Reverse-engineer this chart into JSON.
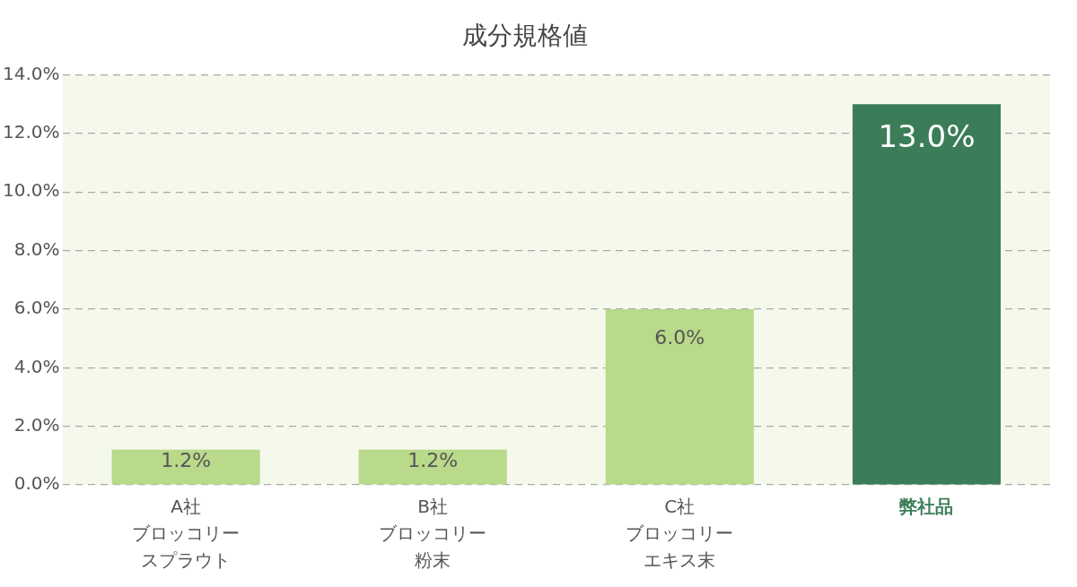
{
  "chart_data": {
    "type": "bar",
    "title": "成分規格値",
    "categories": [
      "A社ブロッコリースプラウト",
      "B社ブロッコリー粉末",
      "C社ブロッコリーエキス末",
      "弊社品"
    ],
    "values": [
      1.2,
      1.2,
      6.0,
      13.0
    ],
    "colors": [
      "#b9d98b",
      "#b9d98b",
      "#b9d98b",
      "#3b7d58"
    ],
    "value_labels": [
      "1.2%",
      "1.2%",
      "6.0%",
      "13.0%"
    ],
    "ylim": [
      0,
      14
    ],
    "yticks": [
      {
        "value": 0,
        "label": "0.0%"
      },
      {
        "value": 2,
        "label": "2.0%"
      },
      {
        "value": 4,
        "label": "4.0%"
      },
      {
        "value": 6,
        "label": "6.0%"
      },
      {
        "value": 8,
        "label": "8.0%"
      },
      {
        "value": 10,
        "label": "10.0%"
      },
      {
        "value": 12,
        "label": "12.0%"
      },
      {
        "value": 14,
        "label": "14.0%"
      }
    ],
    "grid": "y",
    "legend": false
  }
}
